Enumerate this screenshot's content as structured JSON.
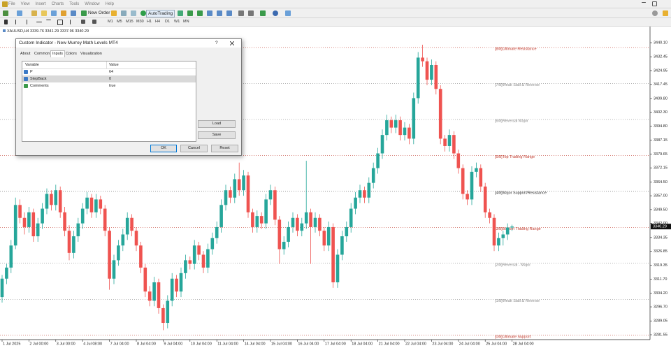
{
  "menu": [
    "File",
    "View",
    "Insert",
    "Charts",
    "Tools",
    "Window",
    "Help"
  ],
  "toolbar": {
    "new_order": "New Order",
    "autotrading": "AutoTrading",
    "timeframes": [
      "M1",
      "M5",
      "M15",
      "M30",
      "H1",
      "H4",
      "D1",
      "W1",
      "MN"
    ]
  },
  "chart_data": {
    "type": "candlestick",
    "title": "XAUUSD,H4  3339.76 3341.29 3337.96 3340.29",
    "ylim": [
      3278.9,
      3448.1
    ],
    "yticks": [
      {
        "value": 3440.1,
        "label": "3440.10"
      },
      {
        "value": 3432.45,
        "label": "3432.45"
      },
      {
        "value": 3424.95,
        "label": "3424.95"
      },
      {
        "value": 3417.45,
        "label": "3417.45"
      },
      {
        "value": 3409.8,
        "label": "3409.80"
      },
      {
        "value": 3402.3,
        "label": "3402.30"
      },
      {
        "value": 3394.8,
        "label": "3394.80"
      },
      {
        "value": 3387.15,
        "label": "3387.15"
      },
      {
        "value": 3379.65,
        "label": "3379.65"
      },
      {
        "value": 3372.15,
        "label": "3372.15"
      },
      {
        "value": 3364.5,
        "label": "3364.50"
      },
      {
        "value": 3357,
        "label": "3357.00"
      },
      {
        "value": 3349.5,
        "label": "3349.50"
      },
      {
        "value": 3342,
        "label": "3342.00"
      },
      {
        "value": 3334.35,
        "label": "3334.35"
      },
      {
        "value": 3326.85,
        "label": "3326.85"
      },
      {
        "value": 3319.35,
        "label": "3319.35"
      },
      {
        "value": 3311.7,
        "label": "3311.70"
      },
      {
        "value": 3304.2,
        "label": "3304.20"
      },
      {
        "value": 3296.7,
        "label": "3296.70"
      },
      {
        "value": 3289.05,
        "label": "3289.05"
      },
      {
        "value": 3281.55,
        "label": "3281.55"
      }
    ],
    "last_price": 3340.29,
    "up_color": "#26a69a",
    "down_color": "#ef5350",
    "categories": [
      "1 Jul 2025",
      null,
      null,
      null,
      null,
      null,
      "2 Jul 00:00",
      null,
      null,
      null,
      null,
      null,
      "3 Jul 00:00",
      null,
      null,
      null,
      null,
      null,
      "4 Jul 08:00",
      null,
      null,
      null,
      null,
      null,
      "7 Jul 04:00",
      null,
      null,
      null,
      null,
      null,
      "8 Jul 04:00",
      null,
      null,
      null,
      null,
      null,
      "9 Jul 04:00",
      null,
      null,
      null,
      null,
      null,
      "10 Jul 04:00",
      null,
      null,
      null,
      null,
      null,
      "11 Jul 04:00",
      null,
      null,
      null,
      null,
      null,
      "14 Jul 04:00",
      null,
      null,
      null,
      null,
      null,
      "15 Jul 04:00",
      null,
      null,
      null,
      null,
      null,
      "16 Jul 04:00",
      null,
      null,
      null,
      null,
      null,
      "17 Jul 04:00",
      null,
      null,
      null,
      null,
      null,
      "18 Jul 04:00",
      null,
      null,
      null,
      null,
      null,
      "21 Jul 04:00",
      null,
      null,
      null,
      null,
      null,
      "22 Jul 04:00",
      null,
      null,
      null,
      null,
      null,
      "23 Jul 04:00",
      null,
      null,
      null,
      null,
      null,
      "24 Jul 04:00",
      null,
      null,
      null,
      null,
      null,
      "25 Jul 04:00",
      null,
      null,
      null,
      null,
      null,
      "28 Jul 04:00"
    ],
    "candles": [
      [
        3302,
        3314,
        3299,
        3312
      ],
      [
        3312,
        3320,
        3309,
        3318
      ],
      [
        3318,
        3333,
        3315,
        3330
      ],
      [
        3330,
        3356,
        3328,
        3352
      ],
      [
        3352,
        3355,
        3342,
        3345
      ],
      [
        3345,
        3348,
        3336,
        3340
      ],
      [
        3340,
        3351,
        3337,
        3348
      ],
      [
        3348,
        3350,
        3332,
        3335
      ],
      [
        3335,
        3345,
        3332,
        3342
      ],
      [
        3342,
        3353,
        3339,
        3350
      ],
      [
        3350,
        3361,
        3347,
        3358
      ],
      [
        3358,
        3360,
        3349,
        3352
      ],
      [
        3352,
        3363,
        3349,
        3360
      ],
      [
        3360,
        3362,
        3345,
        3348
      ],
      [
        3348,
        3351,
        3335,
        3338
      ],
      [
        3338,
        3341,
        3322,
        3326
      ],
      [
        3326,
        3338,
        3323,
        3335
      ],
      [
        3335,
        3345,
        3332,
        3342
      ],
      [
        3342,
        3353,
        3339,
        3350
      ],
      [
        3350,
        3359,
        3347,
        3356
      ],
      [
        3356,
        3358,
        3345,
        3348
      ],
      [
        3348,
        3358,
        3345,
        3355
      ],
      [
        3355,
        3357,
        3347,
        3350
      ],
      [
        3350,
        3352,
        3335,
        3338
      ],
      [
        3338,
        3340,
        3306,
        3312
      ],
      [
        3312,
        3325,
        3309,
        3322
      ],
      [
        3322,
        3333,
        3319,
        3330
      ],
      [
        3330,
        3339,
        3327,
        3336
      ],
      [
        3336,
        3348,
        3333,
        3345
      ],
      [
        3345,
        3347,
        3335,
        3338
      ],
      [
        3338,
        3340,
        3327,
        3330
      ],
      [
        3330,
        3332,
        3315,
        3318
      ],
      [
        3318,
        3320,
        3302,
        3305
      ],
      [
        3305,
        3308,
        3297,
        3300
      ],
      [
        3300,
        3313,
        3297,
        3310
      ],
      [
        3310,
        3312,
        3293,
        3296
      ],
      [
        3296,
        3298,
        3284,
        3288
      ],
      [
        3288,
        3303,
        3285,
        3300
      ],
      [
        3300,
        3315,
        3297,
        3312
      ],
      [
        3312,
        3314,
        3302,
        3305
      ],
      [
        3305,
        3318,
        3302,
        3315
      ],
      [
        3315,
        3325,
        3312,
        3322
      ],
      [
        3322,
        3324,
        3317,
        3320
      ],
      [
        3320,
        3333,
        3317,
        3330
      ],
      [
        3330,
        3332,
        3322,
        3325
      ],
      [
        3325,
        3327,
        3315,
        3318
      ],
      [
        3318,
        3331,
        3315,
        3328
      ],
      [
        3328,
        3337,
        3325,
        3334
      ],
      [
        3334,
        3343,
        3331,
        3340
      ],
      [
        3340,
        3355,
        3337,
        3352
      ],
      [
        3352,
        3363,
        3349,
        3360
      ],
      [
        3360,
        3362,
        3353,
        3356
      ],
      [
        3356,
        3369,
        3353,
        3366
      ],
      [
        3366,
        3375,
        3357,
        3360
      ],
      [
        3360,
        3371,
        3357,
        3368
      ],
      [
        3368,
        3370,
        3345,
        3348
      ],
      [
        3348,
        3350,
        3337,
        3340
      ],
      [
        3340,
        3349,
        3337,
        3346
      ],
      [
        3346,
        3348,
        3339,
        3342
      ],
      [
        3342,
        3358,
        3339,
        3355
      ],
      [
        3355,
        3363,
        3352,
        3360
      ],
      [
        3360,
        3362,
        3341,
        3344
      ],
      [
        3344,
        3346,
        3320,
        3328
      ],
      [
        3328,
        3335,
        3325,
        3332
      ],
      [
        3332,
        3343,
        3329,
        3340
      ],
      [
        3340,
        3348,
        3337,
        3345
      ],
      [
        3345,
        3347,
        3335,
        3338
      ],
      [
        3338,
        3345,
        3335,
        3342
      ],
      [
        3342,
        3376,
        3339,
        3348
      ],
      [
        3348,
        3350,
        3320,
        3340
      ],
      [
        3340,
        3348,
        3337,
        3345
      ],
      [
        3345,
        3347,
        3335,
        3338
      ],
      [
        3338,
        3340,
        3327,
        3330
      ],
      [
        3330,
        3343,
        3327,
        3340
      ],
      [
        3340,
        3342,
        3307,
        3310
      ],
      [
        3310,
        3328,
        3307,
        3325
      ],
      [
        3325,
        3338,
        3322,
        3335
      ],
      [
        3335,
        3343,
        3332,
        3340
      ],
      [
        3340,
        3353,
        3337,
        3350
      ],
      [
        3350,
        3359,
        3347,
        3356
      ],
      [
        3356,
        3363,
        3353,
        3360
      ],
      [
        3360,
        3362,
        3353,
        3356
      ],
      [
        3356,
        3367,
        3353,
        3364
      ],
      [
        3364,
        3375,
        3361,
        3372
      ],
      [
        3372,
        3383,
        3369,
        3380
      ],
      [
        3380,
        3393,
        3377,
        3390
      ],
      [
        3390,
        3401,
        3387,
        3398
      ],
      [
        3398,
        3400,
        3391,
        3394
      ],
      [
        3394,
        3401,
        3391,
        3398
      ],
      [
        3398,
        3400,
        3387,
        3390
      ],
      [
        3390,
        3397,
        3387,
        3394
      ],
      [
        3394,
        3396,
        3385,
        3388
      ],
      [
        3388,
        3413,
        3385,
        3410
      ],
      [
        3410,
        3435,
        3407,
        3432
      ],
      [
        3432,
        3439,
        3427,
        3430
      ],
      [
        3430,
        3432,
        3417,
        3420
      ],
      [
        3420,
        3431,
        3417,
        3428
      ],
      [
        3428,
        3430,
        3412,
        3415
      ],
      [
        3415,
        3417,
        3385,
        3388
      ],
      [
        3388,
        3390,
        3381,
        3384
      ],
      [
        3384,
        3393,
        3381,
        3390
      ],
      [
        3390,
        3392,
        3377,
        3380
      ],
      [
        3380,
        3382,
        3369,
        3372
      ],
      [
        3372,
        3374,
        3355,
        3358
      ],
      [
        3358,
        3360,
        3352,
        3355
      ],
      [
        3355,
        3373,
        3352,
        3370
      ],
      [
        3370,
        3375,
        3367,
        3372
      ],
      [
        3372,
        3374,
        3359,
        3362
      ],
      [
        3362,
        3364,
        3345,
        3348
      ],
      [
        3348,
        3350,
        3342,
        3345
      ],
      [
        3345,
        3347,
        3327,
        3330
      ],
      [
        3330,
        3337,
        3327,
        3334
      ],
      [
        3334,
        3338,
        3330,
        3336
      ],
      [
        3336,
        3342,
        3333,
        3339.76
      ],
      [
        3339.76,
        3341.29,
        3337.96,
        3340.29
      ]
    ],
    "levels": [
      {
        "label": "[8/8]Ultimate Resistance",
        "value": 3437.5,
        "color": "#c0392b"
      },
      {
        "label": "[7/8]Weak Stall & Reverse",
        "value": 3417.96875,
        "color": "#888888"
      },
      {
        "label": "[6/8]Reversal Major",
        "value": 3398.4375,
        "color": "#888888"
      },
      {
        "label": "[5/8]Top Trading Range",
        "value": 3378.90625,
        "color": "#c0392b"
      },
      {
        "label": "[4/8]Major Support/Resistance",
        "value": 3359.375,
        "color": "#333333"
      },
      {
        "label": "[3/8]Bottom Trading Range",
        "value": 3339.84375,
        "color": "#c0392b"
      },
      {
        "label": "[2/8]Reversal - Major",
        "value": 3320.3125,
        "color": "#888888"
      },
      {
        "label": "[1/8]Weak Stall & Reverse",
        "value": 3300.78125,
        "color": "#888888"
      },
      {
        "label": "[0/8]Ultimate Support",
        "value": 3281.25,
        "color": "#c0392b"
      }
    ]
  },
  "dialog": {
    "title": "Custom Indicator - New Murrey Math Levels MT4",
    "help": "?",
    "tabs": [
      "About",
      "Common",
      "Inputs",
      "Colors",
      "Visualization"
    ],
    "columns": [
      "Variable",
      "Value"
    ],
    "rows": [
      [
        "P",
        64
      ],
      [
        "StepBack",
        0
      ],
      [
        "Comments",
        "true"
      ]
    ],
    "buttons": {
      "load": "Load",
      "save": "Save",
      "ok": "OK",
      "cancel": "Cancel",
      "reset": "Reset"
    }
  }
}
